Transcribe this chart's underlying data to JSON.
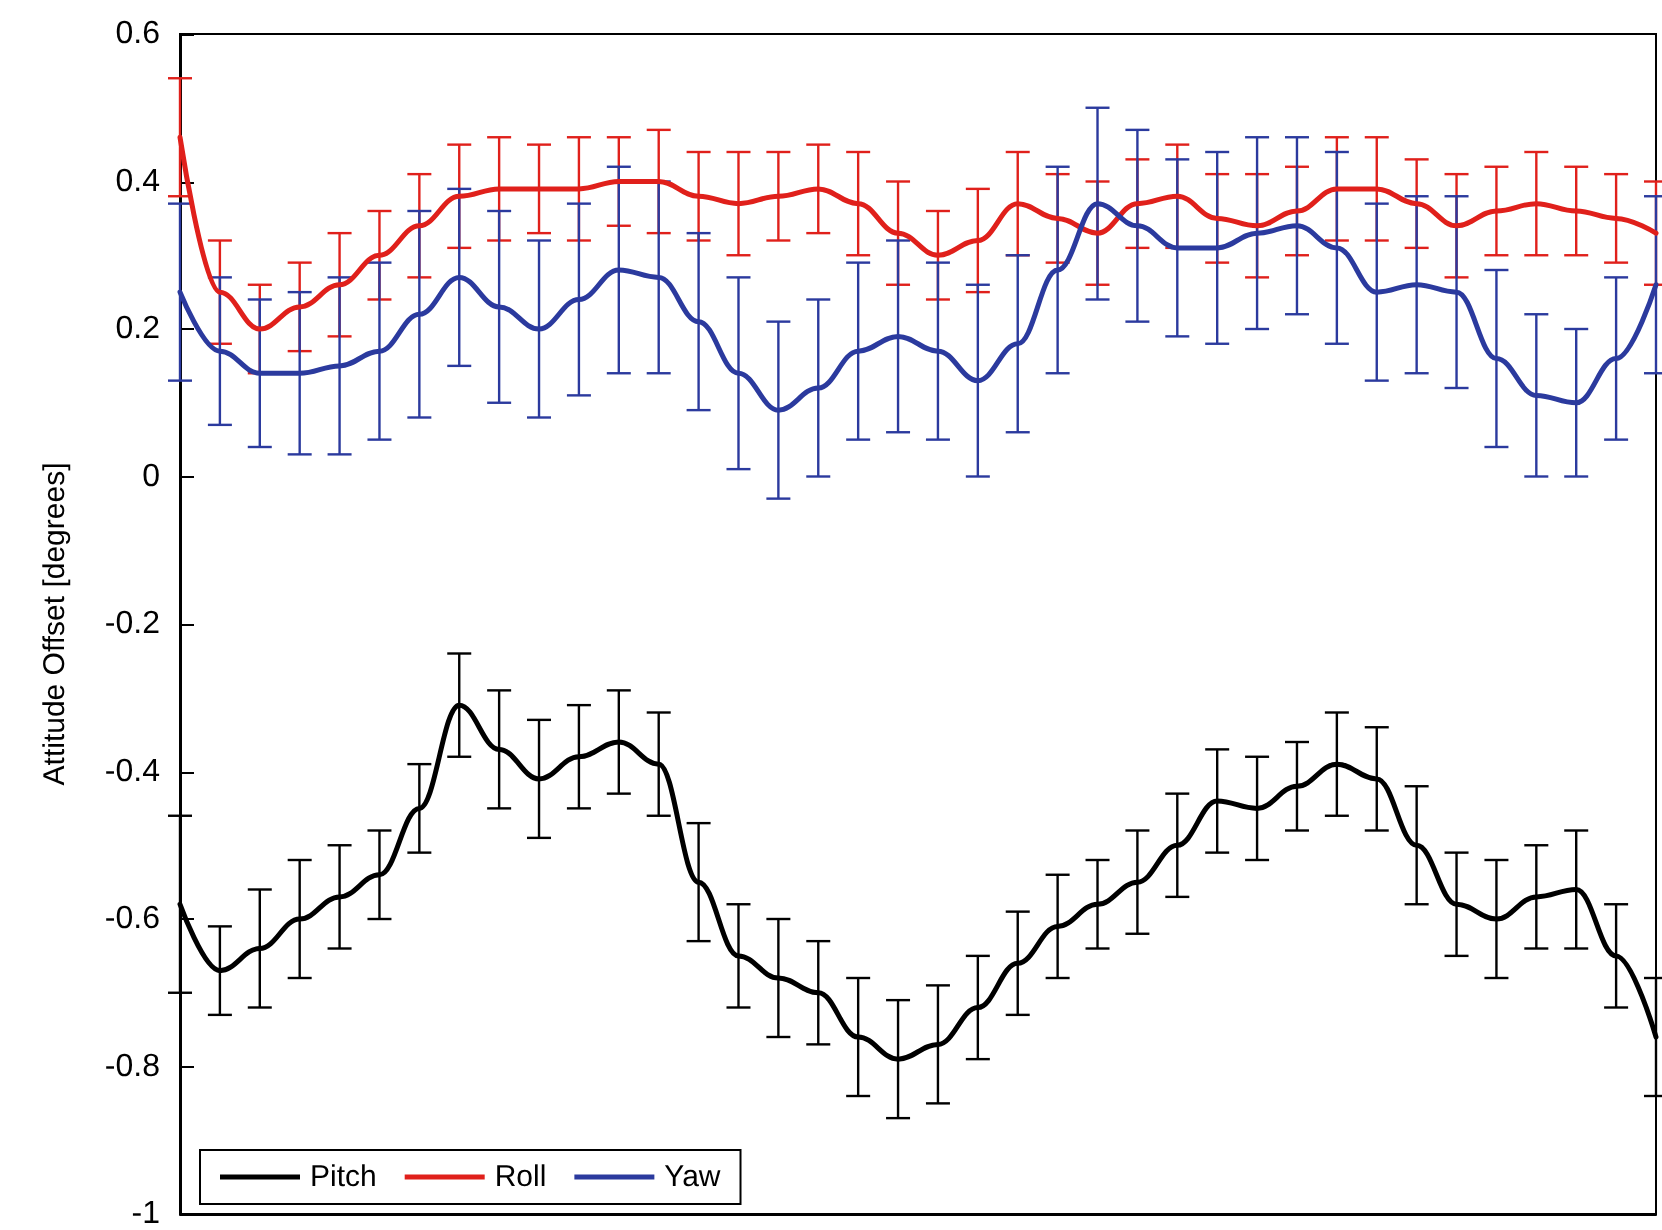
{
  "chart_data": {
    "type": "line",
    "ylabel": "Attitude Offset [degrees]",
    "categories": [
      null,
      null,
      null,
      null,
      null,
      null,
      null,
      null,
      null,
      null,
      null,
      null,
      null,
      null,
      null,
      null,
      null,
      null,
      null,
      null,
      null,
      null,
      null,
      null,
      null,
      null,
      null,
      null,
      null,
      null,
      null,
      null,
      null,
      null,
      null,
      null,
      null,
      null
    ],
    "series": [
      {
        "name": "Pitch",
        "color": "#000000",
        "values": [
          -0.58,
          -0.67,
          -0.64,
          -0.6,
          -0.57,
          -0.54,
          -0.45,
          -0.31,
          -0.37,
          -0.41,
          -0.38,
          -0.36,
          -0.39,
          -0.55,
          -0.65,
          -0.68,
          -0.7,
          -0.76,
          -0.79,
          -0.77,
          -0.72,
          -0.66,
          -0.61,
          -0.58,
          -0.55,
          -0.5,
          -0.44,
          -0.45,
          -0.42,
          -0.39,
          -0.41,
          -0.5,
          -0.58,
          -0.6,
          -0.57,
          -0.56,
          -0.65,
          -0.76
        ],
        "errors": [
          0.12,
          0.06,
          0.08,
          0.08,
          0.07,
          0.06,
          0.06,
          0.07,
          0.08,
          0.08,
          0.07,
          0.07,
          0.07,
          0.08,
          0.07,
          0.08,
          0.07,
          0.08,
          0.08,
          0.08,
          0.07,
          0.07,
          0.07,
          0.06,
          0.07,
          0.07,
          0.07,
          0.07,
          0.06,
          0.07,
          0.07,
          0.08,
          0.07,
          0.08,
          0.07,
          0.08,
          0.07,
          0.08
        ]
      },
      {
        "name": "Roll",
        "color": "#e0201b",
        "values": [
          0.46,
          0.25,
          0.2,
          0.23,
          0.26,
          0.3,
          0.34,
          0.38,
          0.39,
          0.39,
          0.39,
          0.4,
          0.4,
          0.38,
          0.37,
          0.38,
          0.39,
          0.37,
          0.33,
          0.3,
          0.32,
          0.37,
          0.35,
          0.33,
          0.37,
          0.38,
          0.35,
          0.34,
          0.36,
          0.39,
          0.39,
          0.37,
          0.34,
          0.36,
          0.37,
          0.36,
          0.35,
          0.33
        ],
        "errors": [
          0.08,
          0.07,
          0.06,
          0.06,
          0.07,
          0.06,
          0.07,
          0.07,
          0.07,
          0.06,
          0.07,
          0.06,
          0.07,
          0.06,
          0.07,
          0.06,
          0.06,
          0.07,
          0.07,
          0.06,
          0.07,
          0.07,
          0.06,
          0.07,
          0.06,
          0.07,
          0.06,
          0.07,
          0.06,
          0.07,
          0.07,
          0.06,
          0.07,
          0.06,
          0.07,
          0.06,
          0.06,
          0.07
        ]
      },
      {
        "name": "Yaw",
        "color": "#2b3a9e",
        "values": [
          0.25,
          0.17,
          0.14,
          0.14,
          0.15,
          0.17,
          0.22,
          0.27,
          0.23,
          0.2,
          0.24,
          0.28,
          0.27,
          0.21,
          0.14,
          0.09,
          0.12,
          0.17,
          0.19,
          0.17,
          0.13,
          0.18,
          0.28,
          0.37,
          0.34,
          0.31,
          0.31,
          0.33,
          0.34,
          0.31,
          0.25,
          0.26,
          0.25,
          0.16,
          0.11,
          0.1,
          0.16,
          0.26
        ],
        "errors": [
          0.12,
          0.1,
          0.1,
          0.11,
          0.12,
          0.12,
          0.14,
          0.12,
          0.13,
          0.12,
          0.13,
          0.14,
          0.13,
          0.12,
          0.13,
          0.12,
          0.12,
          0.12,
          0.13,
          0.12,
          0.13,
          0.12,
          0.14,
          0.13,
          0.13,
          0.12,
          0.13,
          0.13,
          0.12,
          0.13,
          0.12,
          0.12,
          0.13,
          0.12,
          0.11,
          0.1,
          0.11,
          0.12
        ]
      }
    ],
    "ylim": [
      -1,
      0.6
    ],
    "yticks": [
      -1,
      -0.8,
      -0.6,
      -0.4,
      -0.2,
      0,
      0.2,
      0.4,
      0.6
    ],
    "grid": false,
    "legend": "bottom left",
    "marker": "none",
    "line_style": "solid"
  }
}
